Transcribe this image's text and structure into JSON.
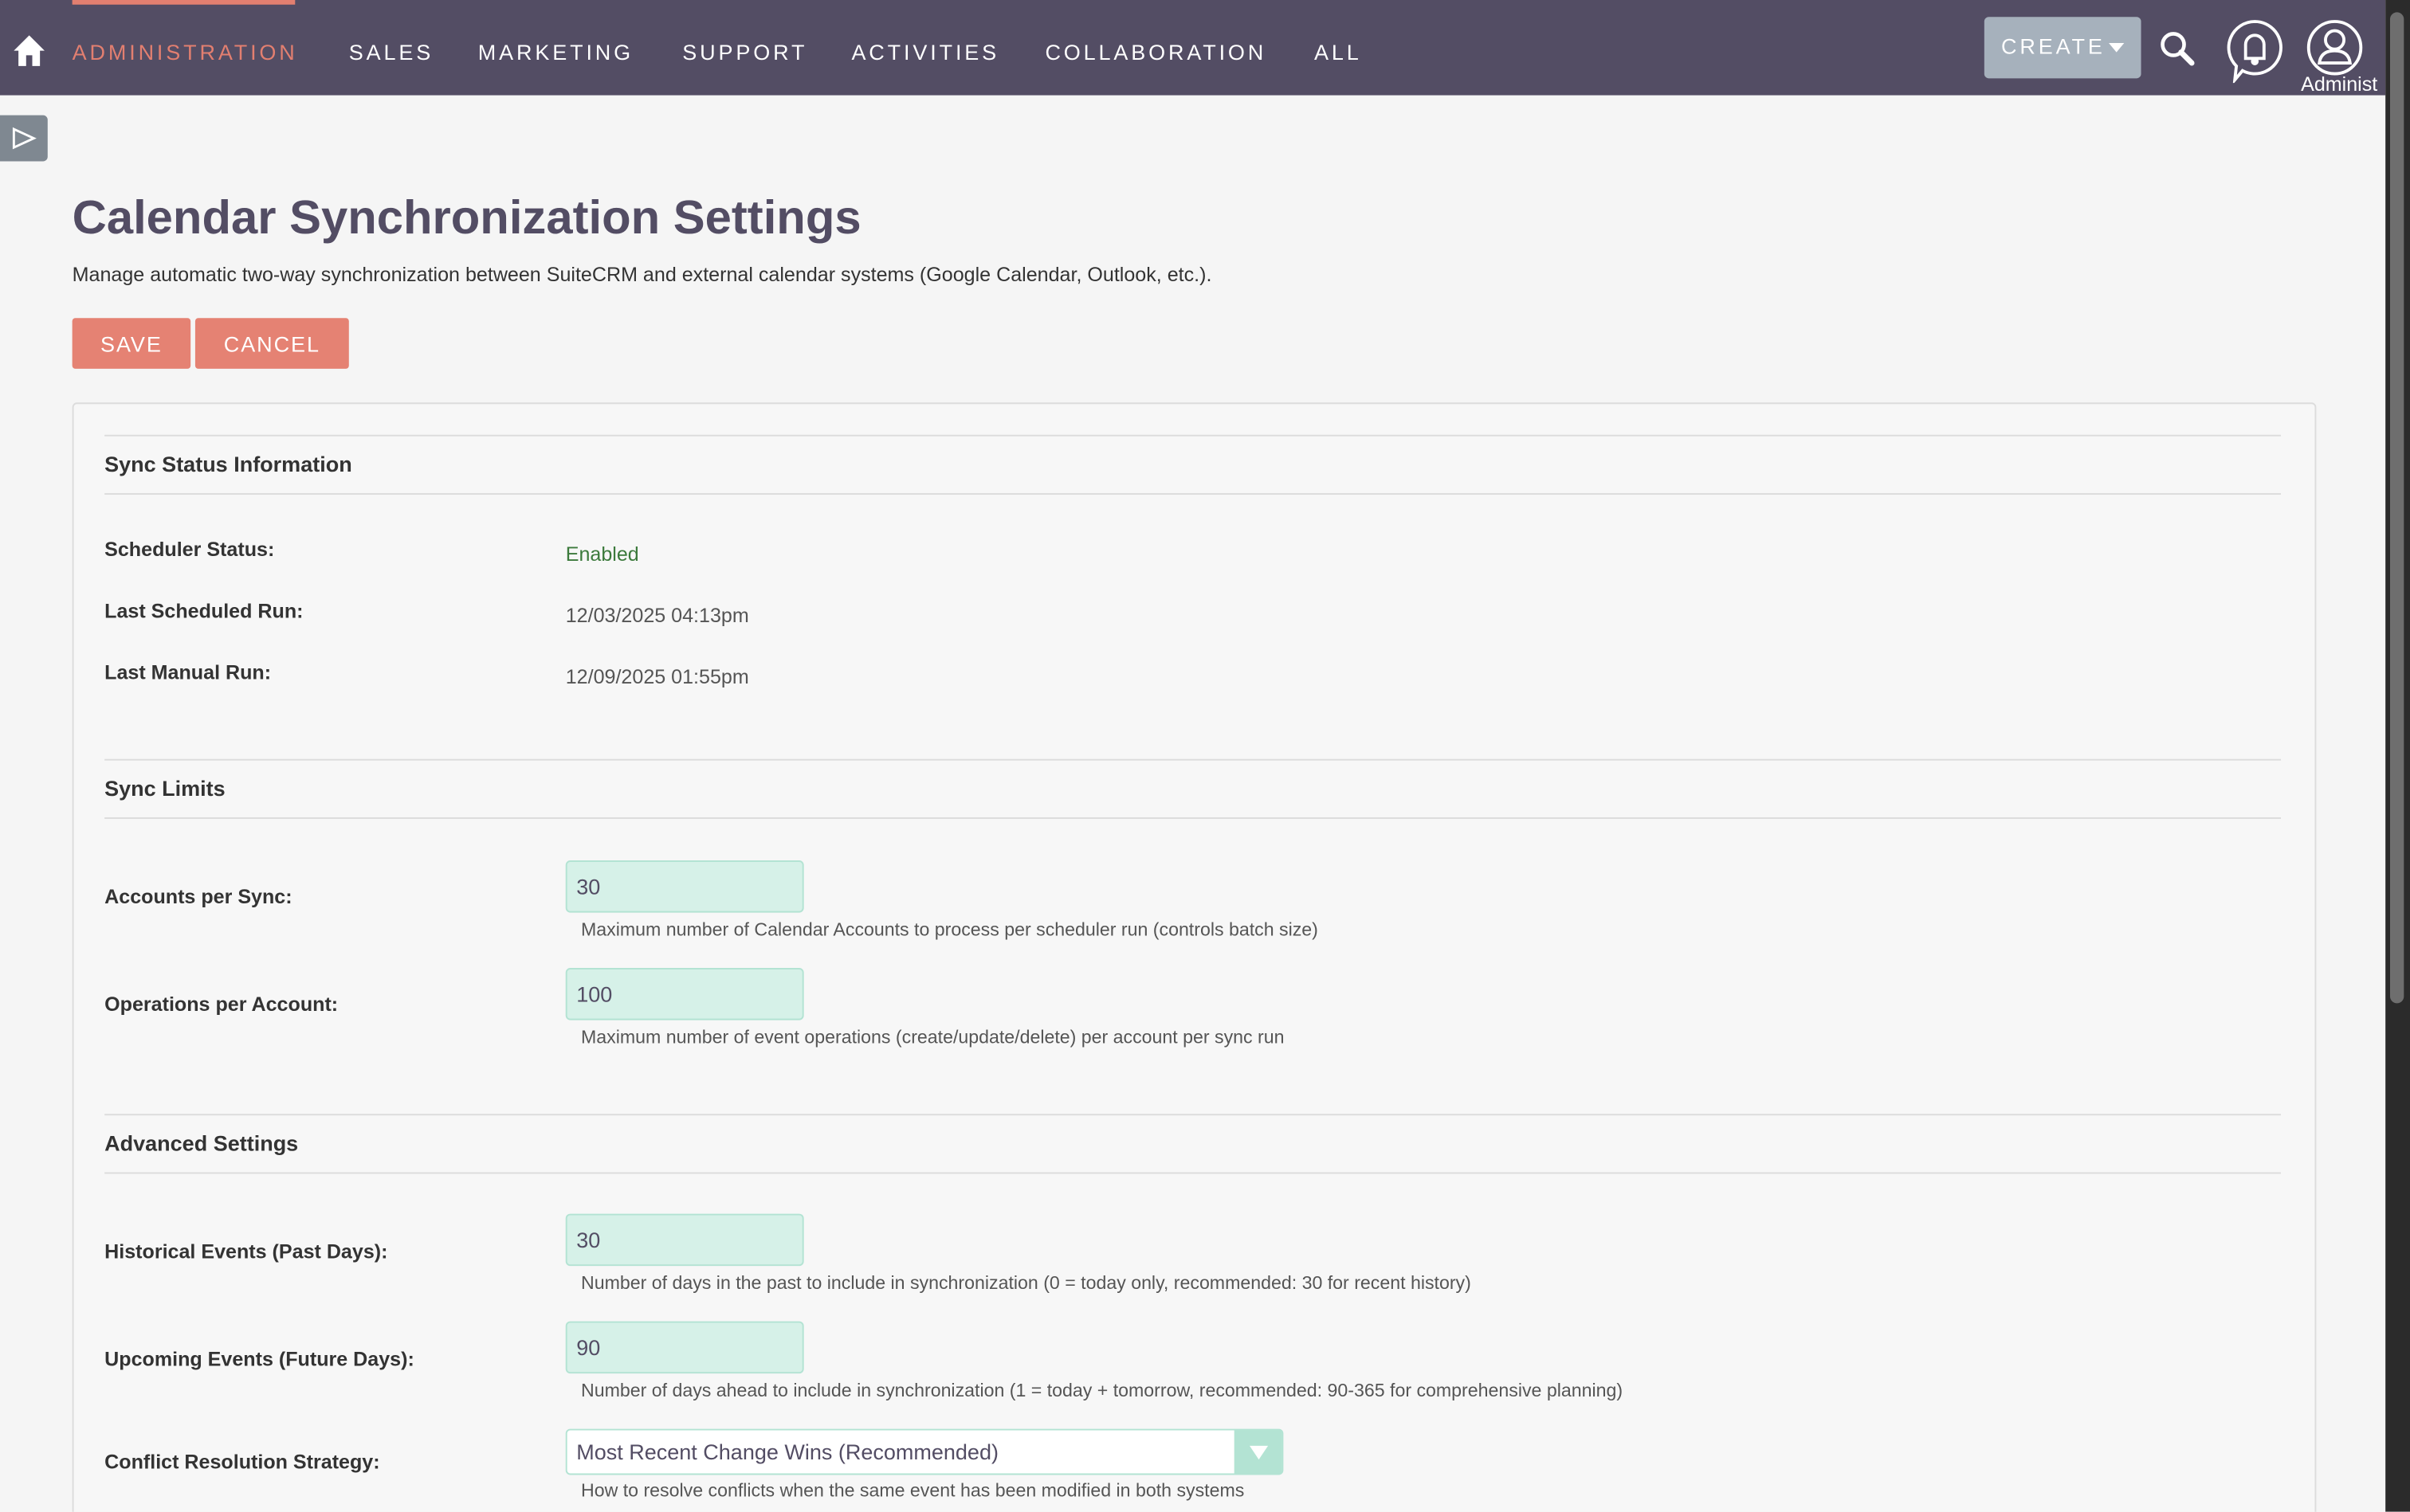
{
  "nav": {
    "items": [
      {
        "label": "ADMINISTRATION",
        "active": true
      },
      {
        "label": "SALES"
      },
      {
        "label": "MARKETING"
      },
      {
        "label": "SUPPORT"
      },
      {
        "label": "ACTIVITIES"
      },
      {
        "label": "COLLABORATION"
      },
      {
        "label": "ALL"
      }
    ],
    "create_label": "CREATE",
    "user_label": "Administ",
    "icons": [
      "home-icon",
      "search-icon",
      "notification-bell-icon",
      "user-avatar-icon"
    ]
  },
  "page": {
    "title": "Calendar Synchronization Settings",
    "description": "Manage automatic two-way synchronization between SuiteCRM and external calendar systems (Google Calendar, Outlook, etc.).",
    "save_label": "SAVE",
    "cancel_label": "CANCEL"
  },
  "status": {
    "heading": "Sync Status Information",
    "scheduler_label": "Scheduler Status:",
    "scheduler_value": "Enabled",
    "last_scheduled_label": "Last Scheduled Run:",
    "last_scheduled_value": "12/03/2025 04:13pm",
    "last_manual_label": "Last Manual Run:",
    "last_manual_value": "12/09/2025 01:55pm"
  },
  "limits": {
    "heading": "Sync Limits",
    "accounts_label": "Accounts per Sync:",
    "accounts_value": "30",
    "accounts_help": "Maximum number of Calendar Accounts to process per scheduler run (controls batch size)",
    "ops_label": "Operations per Account:",
    "ops_value": "100",
    "ops_help": "Maximum number of event operations (create/update/delete) per account per sync run"
  },
  "advanced": {
    "heading": "Advanced Settings",
    "past_label": "Historical Events (Past Days):",
    "past_value": "30",
    "past_help": "Number of days in the past to include in synchronization (0 = today only, recommended: 30 for recent history)",
    "future_label": "Upcoming Events (Future Days):",
    "future_value": "90",
    "future_help": "Number of days ahead to include in synchronization (1 = today + tomorrow, recommended: 90-365 for comprehensive planning)",
    "conflict_label": "Conflict Resolution Strategy:",
    "conflict_value": "Most Recent Change Wins (Recommended)",
    "conflict_help": "How to resolve conflicts when the same event has been modified in both systems"
  },
  "colors": {
    "nav_bg": "#534d64",
    "accent": "#e27f70",
    "input_bg": "#d6f1e8",
    "status_ok": "#3c7a3c"
  }
}
